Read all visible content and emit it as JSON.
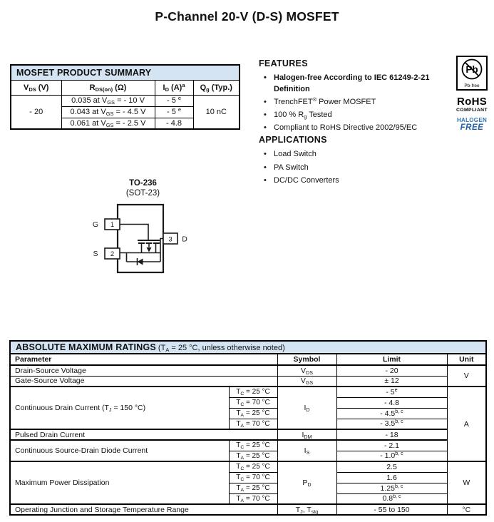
{
  "page": {
    "title": "P-Channel 20-V (D-S) MOSFET"
  },
  "colors": {
    "header_bg": "#d5e4f2",
    "halogen_blue": "#2e74b5",
    "free_blue": "#1f5fa8"
  },
  "summary": {
    "title": "MOSFET PRODUCT SUMMARY",
    "headers": {
      "vds": [
        {
          "t": "V"
        },
        {
          "sub": "DS"
        },
        {
          "t": " (V)"
        }
      ],
      "rdson": [
        {
          "t": "R"
        },
        {
          "sub": "DS(on)"
        },
        {
          "t": " (Ω)"
        }
      ],
      "id": [
        {
          "t": "I"
        },
        {
          "sub": "D"
        },
        {
          "t": " (A)"
        },
        {
          "sup": "a"
        }
      ],
      "qg": [
        {
          "t": "Q"
        },
        {
          "sub": "g"
        },
        {
          "t": " (Typ.)"
        }
      ]
    },
    "vds_value": "- 20",
    "qg_value": "10 nC",
    "rows": [
      {
        "rdson": [
          {
            "t": "0.035 at V"
          },
          {
            "sub": "GS"
          },
          {
            "t": " = - 10 V"
          }
        ],
        "id": [
          {
            "t": "- 5 "
          },
          {
            "sup": "e"
          }
        ]
      },
      {
        "rdson": [
          {
            "t": "0.043 at V"
          },
          {
            "sub": "GS"
          },
          {
            "t": " = - 4.5 V"
          }
        ],
        "id": [
          {
            "t": "- 5 "
          },
          {
            "sup": "e"
          }
        ]
      },
      {
        "rdson": [
          {
            "t": "0.061 at V"
          },
          {
            "sub": "GS"
          },
          {
            "t": " = - 2.5 V"
          }
        ],
        "id": [
          {
            "t": "- 4.8"
          }
        ]
      }
    ]
  },
  "features": {
    "heading": "FEATURES",
    "items": [
      {
        "bold": true,
        "text": [
          {
            "t": "Halogen-free According to IEC 61249-2-21"
          },
          {
            "br": true
          },
          {
            "t": "Definition"
          }
        ]
      },
      {
        "bold": false,
        "text": [
          {
            "t": "TrenchFET"
          },
          {
            "sup": "®"
          },
          {
            "t": " Power MOSFET"
          }
        ]
      },
      {
        "bold": false,
        "text": [
          {
            "t": "100 % R"
          },
          {
            "sub": "g"
          },
          {
            "t": " Tested"
          }
        ]
      },
      {
        "bold": false,
        "text": [
          {
            "t": "Compliant to RoHS Directive 2002/95/EC"
          }
        ]
      }
    ]
  },
  "applications": {
    "heading": "APPLICATIONS",
    "items": [
      "Load Switch",
      "PA Switch",
      "DC/DC Converters"
    ]
  },
  "compliance": {
    "pb": "Pb",
    "pb_free": "Pb-free",
    "rohs": "RoHS",
    "compliant": "COMPLIANT",
    "halogen": "HALOGEN",
    "free": "FREE"
  },
  "package": {
    "name": "TO-236",
    "variant": "(SOT-23)",
    "pins": [
      {
        "num": "1",
        "label": "G"
      },
      {
        "num": "2",
        "label": "S"
      },
      {
        "num": "3",
        "label": "D"
      }
    ]
  },
  "amr": {
    "title": "ABSOLUTE MAXIMUM RATINGS",
    "note": [
      {
        "t": "(T"
      },
      {
        "sub": "A"
      },
      {
        "t": " = 25 °C, unless otherwise noted)"
      }
    ],
    "headers": {
      "parameter": "Parameter",
      "symbol": "Symbol",
      "limit": "Limit",
      "unit": "Unit"
    },
    "unit_v": "V",
    "unit_a": "A",
    "unit_w": "W",
    "drain_source_voltage": {
      "param": "Drain-Source Voltage",
      "symbol": [
        {
          "t": "V"
        },
        {
          "sub": "DS"
        }
      ],
      "limit": "- 20"
    },
    "gate_source_voltage": {
      "param": "Gate-Source Voltage",
      "symbol": [
        {
          "t": "V"
        },
        {
          "sub": "GS"
        }
      ],
      "limit": "± 12"
    },
    "continuous_drain_current": {
      "param": [
        {
          "t": "Continuous Drain Current (T"
        },
        {
          "sub": "J"
        },
        {
          "t": " = 150 °C)"
        }
      ],
      "symbol": [
        {
          "t": "I"
        },
        {
          "sub": "D"
        }
      ],
      "rows": [
        {
          "cond": [
            {
              "t": "T"
            },
            {
              "sub": "C"
            },
            {
              "t": " = 25 °C"
            }
          ],
          "limit": [
            {
              "t": "- 5"
            },
            {
              "sup": "e"
            }
          ]
        },
        {
          "cond": [
            {
              "t": "T"
            },
            {
              "sub": "C"
            },
            {
              "t": " = 70 °C"
            }
          ],
          "limit": [
            {
              "t": "- 4.8"
            }
          ]
        },
        {
          "cond": [
            {
              "t": "T"
            },
            {
              "sub": "A"
            },
            {
              "t": " = 25 °C"
            }
          ],
          "limit": [
            {
              "t": "- 4.5"
            },
            {
              "sup": "b, c"
            }
          ]
        },
        {
          "cond": [
            {
              "t": "T"
            },
            {
              "sub": "A"
            },
            {
              "t": " = 70 °C"
            }
          ],
          "limit": [
            {
              "t": "- 3.5"
            },
            {
              "sup": "b, c"
            }
          ]
        }
      ]
    },
    "pulsed_drain_current": {
      "param": "Pulsed Drain Current",
      "symbol": [
        {
          "t": "I"
        },
        {
          "sub": "DM"
        }
      ],
      "limit": "- 18"
    },
    "source_drain_diode": {
      "param": "Continuous Source-Drain Diode Current",
      "symbol": [
        {
          "t": "I"
        },
        {
          "sub": "S"
        }
      ],
      "rows": [
        {
          "cond": [
            {
              "t": "T"
            },
            {
              "sub": "C"
            },
            {
              "t": " = 25 °C"
            }
          ],
          "limit": [
            {
              "t": "- 2.1"
            }
          ]
        },
        {
          "cond": [
            {
              "t": "T"
            },
            {
              "sub": "A"
            },
            {
              "t": " = 25 °C"
            }
          ],
          "limit": [
            {
              "t": "- 1.0"
            },
            {
              "sup": "b, c"
            }
          ]
        }
      ]
    },
    "max_power_dissipation": {
      "param": "Maximum Power Dissipation",
      "symbol": [
        {
          "t": "P"
        },
        {
          "sub": "D"
        }
      ],
      "rows": [
        {
          "cond": [
            {
              "t": "T"
            },
            {
              "sub": "C"
            },
            {
              "t": " = 25 °C"
            }
          ],
          "limit": [
            {
              "t": "2.5"
            }
          ]
        },
        {
          "cond": [
            {
              "t": "T"
            },
            {
              "sub": "C"
            },
            {
              "t": " = 70 °C"
            }
          ],
          "limit": [
            {
              "t": "1.6"
            }
          ]
        },
        {
          "cond": [
            {
              "t": "T"
            },
            {
              "sub": "A"
            },
            {
              "t": " = 25 °C"
            }
          ],
          "limit": [
            {
              "t": "1.25"
            },
            {
              "sup": "b, c"
            }
          ]
        },
        {
          "cond": [
            {
              "t": "T"
            },
            {
              "sub": "A"
            },
            {
              "t": " = 70 °C"
            }
          ],
          "limit": [
            {
              "t": "0.8"
            },
            {
              "sup": "b, c"
            }
          ]
        }
      ]
    },
    "temp_range": {
      "param": "Operating Junction and Storage Temperature Range",
      "symbol": [
        {
          "t": "T"
        },
        {
          "sub": "J"
        },
        {
          "t": ", T"
        },
        {
          "sub": "stg"
        }
      ],
      "limit": "- 55 to 150",
      "unit": "°C"
    }
  }
}
